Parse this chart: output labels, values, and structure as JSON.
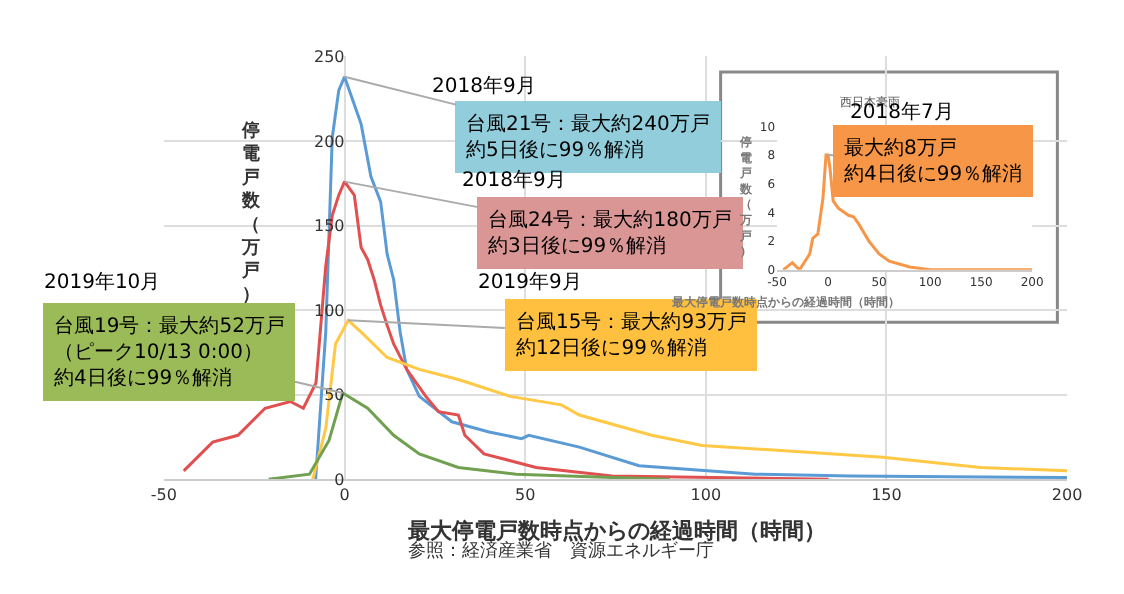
{
  "chart_data": [
    {
      "type": "line",
      "xlabel": "最大停電戸数時点からの経過時間（時間）",
      "ylabel": "停電戸数（万戸）",
      "xlim": [
        -50,
        200
      ],
      "xticks": [
        -50,
        0,
        50,
        100,
        150,
        200
      ],
      "ylim": [
        0,
        250
      ],
      "yticks": [
        0,
        50,
        100,
        150,
        200,
        250
      ],
      "grid": true,
      "annotations": [
        {
          "text": "台風21号：最大約240万戸約5日後に99％解消",
          "x": 0,
          "y": 238
        },
        {
          "text": "台風24号：最大約180万戸約3日後に99％解消",
          "x": 0,
          "y": 176
        },
        {
          "text": "台風15号：最大約93万戸約12日後に99％解消",
          "x": 1,
          "y": 94
        },
        {
          "text": "台風19号：最大約52万戸（ピーク10/13 0:00）約4日後に99％解消",
          "x": -0.5,
          "y": 51
        },
        "2018年9月",
        "2018年9月",
        "2019年9月",
        "2019年10月",
        "参照：経済産業省　資源エネルギー庁"
      ],
      "series": [
        {
          "color": "#5b9bd5",
          "x": [
            -8,
            -5.2,
            -3.4,
            -1.6,
            0,
            4.6,
            7.3,
            10,
            11.8,
            13.6,
            15.4,
            17.2,
            20.7,
            29.7,
            40,
            49,
            51,
            65,
            81.5,
            113.7,
            140,
            200
          ],
          "values": [
            0,
            87,
            202,
            230,
            238,
            210,
            179,
            164,
            133,
            118,
            87,
            65,
            49,
            34,
            28,
            24,
            26,
            19,
            8,
            3,
            2,
            1
          ]
        },
        {
          "color": "#e05050",
          "x": [
            -44.5,
            -36.5,
            -29.5,
            -22,
            -15,
            -11.4,
            -7.9,
            -5.2,
            -3.4,
            -1.6,
            0,
            2.7,
            4.6,
            6.4,
            8.2,
            10,
            11.8,
            13.6,
            17.2,
            22.5,
            26,
            31.5,
            33.3,
            38.6,
            53,
            74,
            134
          ],
          "values": [
            5,
            22,
            26,
            42,
            46,
            42,
            57,
            126,
            156,
            168,
            176,
            168,
            137,
            130,
            118,
            103,
            91,
            80,
            65,
            49,
            40,
            38,
            26,
            15,
            7,
            2,
            0
          ]
        },
        {
          "color": "#ffc845",
          "x": [
            -8.8,
            -5.2,
            -2.5,
            1,
            4.6,
            11.8,
            20.7,
            31.5,
            45.8,
            60,
            65,
            85,
            99,
            149,
            176,
            200
          ],
          "values": [
            0,
            30,
            80,
            94,
            87,
            72,
            65,
            59,
            49,
            44,
            38,
            26,
            20,
            13,
            7,
            5
          ]
        },
        {
          "color": "#70a050",
          "x": [
            -21,
            -9.7,
            -4.3,
            -0.5,
            6.4,
            13.6,
            20.7,
            31.5,
            47.5,
            74,
            90
          ],
          "values": [
            0,
            3,
            23,
            51,
            42,
            26,
            15,
            7,
            3,
            1,
            0
          ]
        }
      ]
    },
    {
      "type": "line",
      "title": "西日本豪雨",
      "xlabel": "最大停電戸数時点からの経過時間（時間）",
      "ylabel": "停電戸数（万戸）",
      "xlim": [
        -50,
        200
      ],
      "xticks": [
        -50,
        0,
        50,
        100,
        150,
        200
      ],
      "ylim": [
        0,
        10
      ],
      "yticks": [
        0,
        2,
        4,
        6,
        8,
        10
      ],
      "annotations": [
        {
          "text": "最大約8万戸約4日後に99％解消",
          "x": 0,
          "y": 8
        },
        "2018年7月"
      ],
      "series": [
        {
          "color": "#f79646",
          "x": [
            -44,
            -35,
            -28,
            -18,
            -15,
            -10,
            -5,
            -2,
            0,
            2,
            5,
            10,
            20,
            25,
            30,
            40,
            50,
            60,
            80,
            100,
            150,
            200
          ],
          "values": [
            0,
            0.5,
            0,
            1.1,
            2.2,
            2.5,
            5,
            8,
            8,
            7,
            4.8,
            4.3,
            3.8,
            3.7,
            3.2,
            2,
            1.1,
            0.6,
            0.2,
            0,
            0,
            0
          ]
        }
      ]
    }
  ]
}
